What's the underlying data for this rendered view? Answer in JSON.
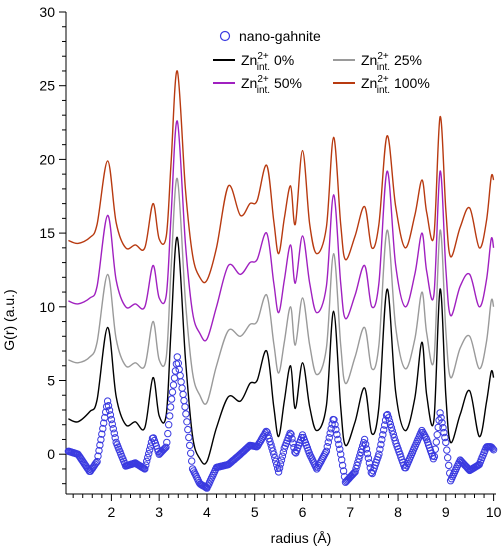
{
  "chart_data": {
    "type": "line",
    "xlabel": "radius (Å)",
    "ylabel": "G(r) (a.u.)",
    "xlim": [
      1.05,
      10.05
    ],
    "ylim": [
      -2.7,
      30
    ],
    "x_ticks": [
      2,
      3,
      4,
      5,
      6,
      7,
      8,
      9,
      10
    ],
    "y_ticks": [
      0,
      5,
      10,
      15,
      20,
      25,
      30
    ],
    "x_tick_labels": [
      "2",
      "3",
      "4",
      "5",
      "6",
      "7",
      "8",
      "9",
      "10"
    ],
    "y_tick_labels": [
      "0",
      "5",
      "10",
      "15",
      "20",
      "25",
      "30"
    ],
    "grid": false,
    "legend_position": "top",
    "legend": [
      {
        "label": "nano-gahnite",
        "marker": "circle",
        "color": "#3a3ae0"
      },
      {
        "label_base": "Zn",
        "label_sup": "2+",
        "label_sub": "int.",
        "label_tail": " 0%",
        "color": "#000000"
      },
      {
        "label_base": "Zn",
        "label_sup": "2+",
        "label_sub": "int.",
        "label_tail": " 25%",
        "color": "#9a9a9a"
      },
      {
        "label_base": "Zn",
        "label_sup": "2+",
        "label_sub": "int.",
        "label_tail": " 50%",
        "color": "#a020c0"
      },
      {
        "label_base": "Zn",
        "label_sup": "2+",
        "label_sub": "int.",
        "label_tail": " 100%",
        "color": "#b83a10"
      }
    ],
    "series": [
      {
        "name": "nano-gahnite",
        "style": "markers",
        "color": "#3a3ae0",
        "x": [
          1.1,
          1.3,
          1.55,
          1.7,
          1.92,
          2.1,
          2.3,
          2.5,
          2.7,
          2.87,
          3.0,
          3.15,
          3.25,
          3.38,
          3.55,
          3.7,
          3.85,
          4.0,
          4.2,
          4.45,
          4.7,
          4.9,
          5.05,
          5.25,
          5.4,
          5.5,
          5.62,
          5.75,
          5.85,
          6.0,
          6.15,
          6.3,
          6.5,
          6.65,
          6.8,
          6.9,
          7.1,
          7.3,
          7.45,
          7.6,
          7.77,
          7.95,
          8.15,
          8.35,
          8.5,
          8.6,
          8.75,
          8.88,
          9.0,
          9.1,
          9.3,
          9.5,
          9.7,
          9.85,
          9.95,
          10.0
        ],
        "y": [
          0.2,
          0.0,
          -1.2,
          -0.5,
          3.6,
          0.8,
          -0.8,
          -0.6,
          -1.0,
          1.2,
          0.0,
          0.5,
          3.5,
          6.6,
          3.0,
          -1.0,
          -2.0,
          -2.3,
          -0.9,
          -0.7,
          0.0,
          0.6,
          0.5,
          1.6,
          0.0,
          -1.2,
          0.4,
          1.5,
          0.0,
          1.3,
          0.0,
          -1.0,
          0.2,
          2.5,
          0.0,
          -1.9,
          -1.2,
          1.0,
          -1.4,
          0.0,
          2.8,
          0.8,
          -1.0,
          0.5,
          1.6,
          1.0,
          -0.4,
          2.8,
          0.8,
          -1.8,
          -0.4,
          -1.1,
          -0.7,
          0.5,
          0.5,
          0.3
        ]
      },
      {
        "name_tail": "0%",
        "style": "line",
        "color": "#000000",
        "x": [
          1.1,
          1.3,
          1.55,
          1.7,
          1.92,
          2.1,
          2.3,
          2.5,
          2.7,
          2.87,
          3.0,
          3.15,
          3.25,
          3.38,
          3.55,
          3.7,
          3.85,
          4.0,
          4.2,
          4.45,
          4.7,
          4.9,
          5.05,
          5.25,
          5.4,
          5.5,
          5.62,
          5.75,
          5.85,
          6.0,
          6.15,
          6.3,
          6.5,
          6.65,
          6.8,
          6.9,
          7.1,
          7.3,
          7.45,
          7.6,
          7.77,
          7.95,
          8.15,
          8.35,
          8.5,
          8.6,
          8.75,
          8.88,
          9.0,
          9.1,
          9.3,
          9.5,
          9.7,
          9.85,
          9.95,
          10.0
        ],
        "y": [
          2.4,
          2.2,
          2.9,
          3.7,
          8.6,
          3.9,
          2.0,
          2.2,
          1.8,
          5.2,
          2.6,
          2.7,
          8.5,
          14.7,
          6.5,
          1.2,
          -0.3,
          -0.5,
          1.8,
          3.9,
          3.6,
          4.8,
          5.0,
          7.0,
          3.2,
          1.2,
          3.6,
          6.0,
          3.1,
          6.2,
          3.2,
          1.6,
          3.3,
          9.7,
          3.2,
          0.6,
          2.2,
          4.5,
          1.4,
          3.2,
          11.2,
          4.2,
          1.6,
          3.8,
          7.6,
          4.0,
          2.3,
          11.2,
          4.0,
          0.8,
          2.7,
          4.3,
          1.2,
          3.5,
          5.6,
          5.2
        ]
      },
      {
        "name_tail": "25%",
        "style": "line",
        "color": "#9a9a9a",
        "x": [
          1.1,
          1.3,
          1.55,
          1.7,
          1.92,
          2.1,
          2.3,
          2.5,
          2.7,
          2.87,
          3.0,
          3.15,
          3.25,
          3.38,
          3.55,
          3.7,
          3.85,
          4.0,
          4.2,
          4.45,
          4.7,
          4.9,
          5.05,
          5.25,
          5.4,
          5.5,
          5.62,
          5.75,
          5.85,
          6.0,
          6.15,
          6.3,
          6.5,
          6.65,
          6.8,
          6.9,
          7.1,
          7.3,
          7.45,
          7.6,
          7.77,
          7.95,
          8.15,
          8.35,
          8.5,
          8.6,
          8.75,
          8.88,
          9.0,
          9.1,
          9.3,
          9.5,
          9.7,
          9.85,
          9.95,
          10.0
        ],
        "y": [
          6.4,
          6.2,
          6.6,
          7.6,
          12.2,
          7.8,
          6.0,
          6.2,
          6.0,
          9.0,
          6.4,
          6.6,
          12.6,
          18.7,
          10.4,
          5.5,
          4.0,
          3.5,
          6.0,
          8.4,
          8.0,
          8.8,
          9.0,
          10.8,
          7.5,
          5.5,
          7.6,
          10.0,
          7.4,
          10.6,
          7.4,
          5.4,
          7.2,
          13.6,
          7.4,
          4.8,
          6.6,
          8.6,
          5.8,
          7.4,
          15.2,
          8.6,
          5.8,
          7.8,
          11.0,
          8.2,
          6.4,
          15.2,
          8.4,
          5.2,
          7.2,
          8.0,
          5.8,
          7.6,
          10.4,
          10.0
        ]
      },
      {
        "name_tail": "50%",
        "style": "line",
        "color": "#a020c0",
        "x": [
          1.1,
          1.3,
          1.55,
          1.7,
          1.92,
          2.1,
          2.3,
          2.5,
          2.7,
          2.87,
          3.0,
          3.15,
          3.25,
          3.38,
          3.55,
          3.7,
          3.85,
          4.0,
          4.2,
          4.45,
          4.7,
          4.9,
          5.05,
          5.25,
          5.4,
          5.5,
          5.62,
          5.75,
          5.85,
          6.0,
          6.15,
          6.3,
          6.5,
          6.65,
          6.8,
          6.9,
          7.1,
          7.3,
          7.45,
          7.6,
          7.77,
          7.95,
          8.15,
          8.35,
          8.5,
          8.6,
          8.75,
          8.88,
          9.0,
          9.1,
          9.3,
          9.5,
          9.7,
          9.85,
          9.95,
          10.0
        ],
        "y": [
          10.4,
          10.2,
          10.6,
          11.4,
          16.2,
          11.8,
          10.0,
          10.2,
          10.0,
          12.8,
          10.6,
          10.8,
          16.2,
          22.6,
          14.3,
          9.6,
          8.2,
          7.8,
          10.0,
          12.8,
          12.2,
          13.0,
          13.2,
          15.0,
          11.6,
          9.6,
          11.8,
          14.2,
          11.6,
          14.8,
          11.6,
          9.6,
          11.4,
          17.6,
          11.6,
          9.2,
          10.8,
          12.8,
          10.0,
          11.6,
          19.2,
          12.8,
          10.0,
          12.2,
          15.0,
          12.4,
          10.8,
          19.2,
          12.6,
          9.4,
          11.4,
          12.2,
          10.0,
          11.8,
          14.6,
          14.0
        ]
      },
      {
        "name_tail": "100%",
        "style": "line",
        "color": "#b83a10",
        "x": [
          1.1,
          1.3,
          1.55,
          1.7,
          1.92,
          2.1,
          2.3,
          2.5,
          2.7,
          2.87,
          3.0,
          3.15,
          3.25,
          3.38,
          3.55,
          3.7,
          3.85,
          4.0,
          4.2,
          4.45,
          4.7,
          4.9,
          5.05,
          5.25,
          5.4,
          5.5,
          5.62,
          5.75,
          5.85,
          6.0,
          6.15,
          6.3,
          6.5,
          6.65,
          6.8,
          6.9,
          7.1,
          7.3,
          7.45,
          7.6,
          7.77,
          7.95,
          8.15,
          8.35,
          8.5,
          8.6,
          8.75,
          8.88,
          9.0,
          9.1,
          9.3,
          9.5,
          9.7,
          9.85,
          9.95,
          10.0
        ],
        "y": [
          14.5,
          14.3,
          14.7,
          15.6,
          19.9,
          15.7,
          14.0,
          14.2,
          14.0,
          17.0,
          14.6,
          14.8,
          19.8,
          26.0,
          18.0,
          13.5,
          12.0,
          11.8,
          14.0,
          18.2,
          16.2,
          17.0,
          17.2,
          19.6,
          15.8,
          13.6,
          16.0,
          18.2,
          15.6,
          20.6,
          15.6,
          13.6,
          15.4,
          21.5,
          15.6,
          13.2,
          14.8,
          16.8,
          14.0,
          15.6,
          21.6,
          16.8,
          14.0,
          16.2,
          18.6,
          16.4,
          14.8,
          22.9,
          16.6,
          13.4,
          15.4,
          16.7,
          14.0,
          15.8,
          18.8,
          18.6
        ]
      }
    ]
  }
}
